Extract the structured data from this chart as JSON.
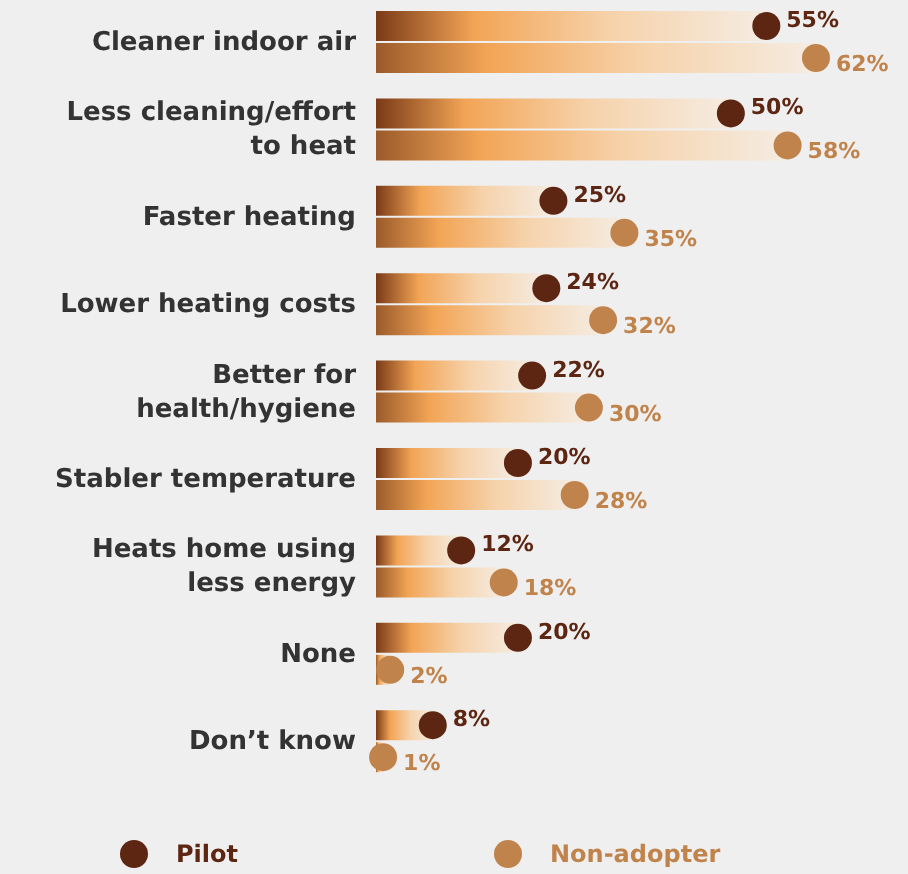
{
  "chart_data": {
    "type": "lollipop",
    "orientation": "horizontal",
    "categories": [
      "Cleaner indoor air",
      "Less cleaning/effort to heat",
      "Faster heating",
      "Lower heating costs",
      "Better for health/hygiene",
      "Stabler temperature",
      "Heats home using less energy",
      "None",
      "Don’t know"
    ],
    "series": [
      {
        "name": "Pilot",
        "color": "#5c2612",
        "values": [
          55,
          50,
          25,
          24,
          22,
          20,
          12,
          20,
          8
        ],
        "value_labels": [
          "55%",
          "50%",
          "25%",
          "24%",
          "22%",
          "20%",
          "12%",
          "20%",
          "8%"
        ]
      },
      {
        "name": "Non-adopter",
        "color": "#c0834b",
        "values": [
          62,
          58,
          35,
          32,
          30,
          28,
          18,
          2,
          1
        ],
        "value_labels": [
          "62%",
          "58%",
          "35%",
          "32%",
          "30%",
          "28%",
          "18%",
          "2%",
          "1%"
        ]
      }
    ],
    "marker": "circle",
    "legend": "bottom"
  }
}
